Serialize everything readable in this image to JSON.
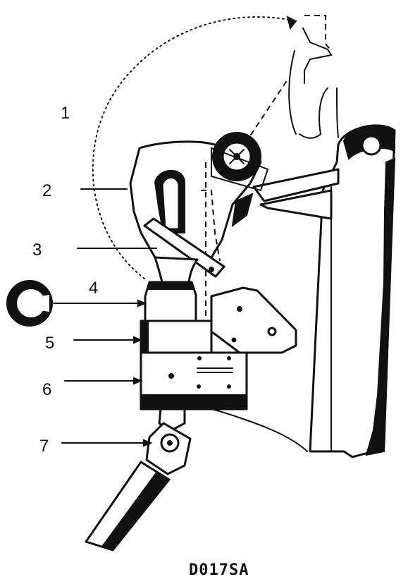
{
  "diagram": {
    "callouts": [
      {
        "id": "c1",
        "label": "1"
      },
      {
        "id": "c2",
        "label": "2"
      },
      {
        "id": "c3",
        "label": "3"
      },
      {
        "id": "c4",
        "label": "4"
      },
      {
        "id": "c5",
        "label": "5"
      },
      {
        "id": "c6",
        "label": "6"
      },
      {
        "id": "c7",
        "label": "7"
      }
    ],
    "caption": "D017SA",
    "ink_color": "#111111",
    "background_color": "#ffffff"
  }
}
